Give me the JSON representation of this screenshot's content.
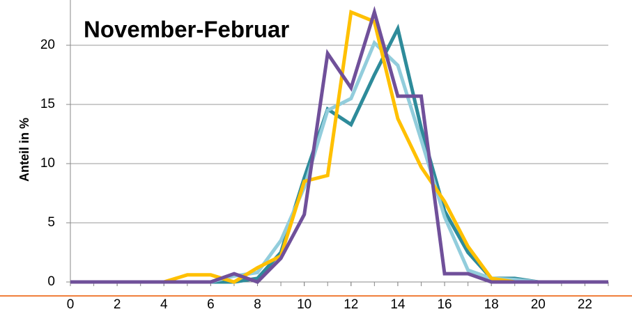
{
  "chart_data": {
    "type": "line",
    "title": "November-Februar",
    "y_label": "Anteil in %",
    "x": [
      0,
      1,
      2,
      3,
      4,
      5,
      6,
      7,
      8,
      9,
      10,
      11,
      12,
      13,
      14,
      15,
      16,
      17,
      18,
      19,
      20,
      21,
      22,
      23
    ],
    "series": [
      {
        "color": "#2e8b9a",
        "values": [
          0,
          0,
          0,
          0,
          0,
          0,
          0,
          0,
          0.3,
          2.5,
          8.8,
          14.6,
          13.3,
          17.5,
          21.4,
          13,
          6,
          2.5,
          0.3,
          0.3,
          0,
          0,
          0,
          0
        ]
      },
      {
        "color": "#92cddc",
        "values": [
          0,
          0,
          0,
          0,
          0,
          0,
          0,
          0.5,
          0.8,
          3.5,
          8,
          14.5,
          15.5,
          20.2,
          18.3,
          12,
          5.5,
          1,
          0.3,
          0.2,
          0,
          0,
          0,
          0
        ]
      },
      {
        "color": "#ffc000",
        "values": [
          0,
          0,
          0,
          0,
          0,
          0.6,
          0.6,
          0,
          1.2,
          2.2,
          8.5,
          9,
          22.8,
          22,
          13.8,
          9.7,
          6.8,
          3,
          0.3,
          0,
          0,
          0,
          0,
          0
        ]
      },
      {
        "color": "#70509a",
        "values": [
          0,
          0,
          0,
          0,
          0,
          0,
          0,
          0.7,
          0,
          2,
          5.7,
          19.3,
          16.4,
          22.8,
          15.7,
          15.7,
          0.7,
          0.7,
          0,
          0,
          0,
          0,
          0,
          0
        ]
      }
    ],
    "xlim": [
      0,
      23
    ],
    "xticks": [
      0,
      2,
      4,
      6,
      8,
      10,
      12,
      14,
      16,
      18,
      20,
      22
    ],
    "ylim": [
      0,
      24
    ],
    "yticks": [
      0,
      5,
      10,
      15,
      20
    ],
    "grid": true
  }
}
